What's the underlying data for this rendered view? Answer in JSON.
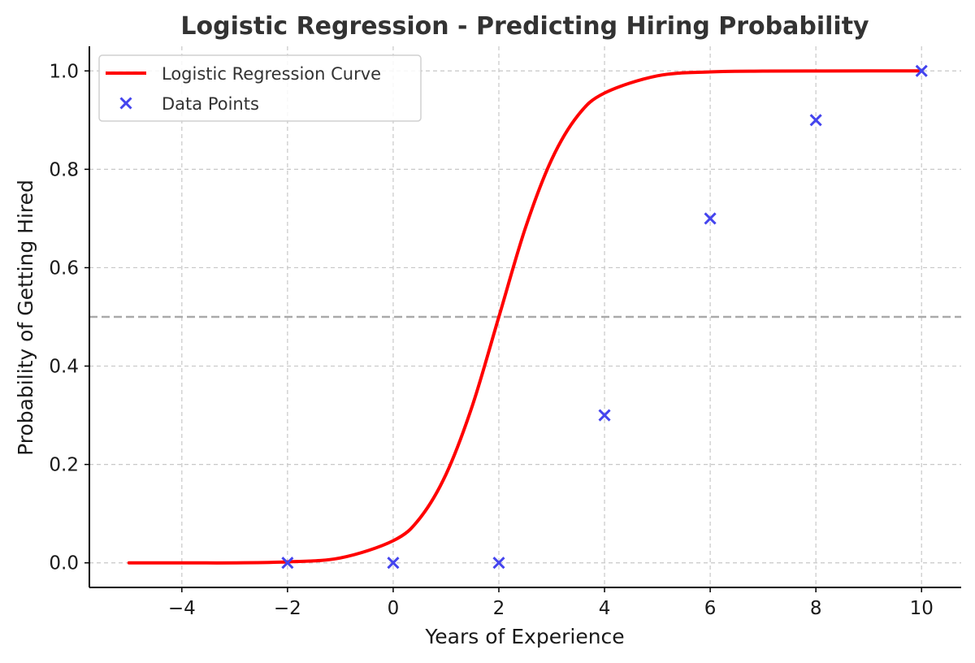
{
  "chart_data": {
    "type": "line",
    "title": "Logistic Regression - Predicting Hiring Probability",
    "xlabel": "Years of Experience",
    "ylabel": "Probability of Getting Hired",
    "xlim": [
      -5.75,
      10.75
    ],
    "ylim": [
      -0.05,
      1.05
    ],
    "xticks": [
      -4,
      -2,
      0,
      2,
      4,
      6,
      8,
      10
    ],
    "xtick_labels": [
      "−4",
      "−2",
      "0",
      "2",
      "4",
      "6",
      "8",
      "10"
    ],
    "yticks": [
      0.0,
      0.2,
      0.4,
      0.6,
      0.8,
      1.0
    ],
    "ytick_labels": [
      "0.0",
      "0.2",
      "0.4",
      "0.6",
      "0.8",
      "1.0"
    ],
    "grid": true,
    "legend_position": "top-left",
    "threshold": {
      "y": 0.5,
      "color": "#aaaaaa",
      "style": "dashed"
    },
    "series": [
      {
        "name": "Logistic Regression Curve",
        "kind": "line",
        "color": "#ff0000",
        "x": [
          -5,
          -4,
          -3,
          -2,
          -1,
          0,
          0.5,
          1,
          1.5,
          2,
          2.5,
          3,
          3.5,
          4,
          5,
          6,
          7,
          8,
          9,
          10
        ],
        "y": [
          0.0,
          0.0,
          0.0,
          0.002,
          0.01,
          0.045,
          0.09,
          0.18,
          0.32,
          0.5,
          0.68,
          0.82,
          0.91,
          0.955,
          0.99,
          0.998,
          0.9996,
          0.9999,
          1.0,
          1.0
        ]
      },
      {
        "name": "Data Points",
        "kind": "scatter",
        "marker": "x",
        "color": "#4444ee",
        "x": [
          -2,
          0,
          2,
          4,
          6,
          8,
          10
        ],
        "y": [
          0.0,
          0.0,
          0.0,
          0.3,
          0.7,
          0.9,
          1.0
        ]
      }
    ]
  }
}
